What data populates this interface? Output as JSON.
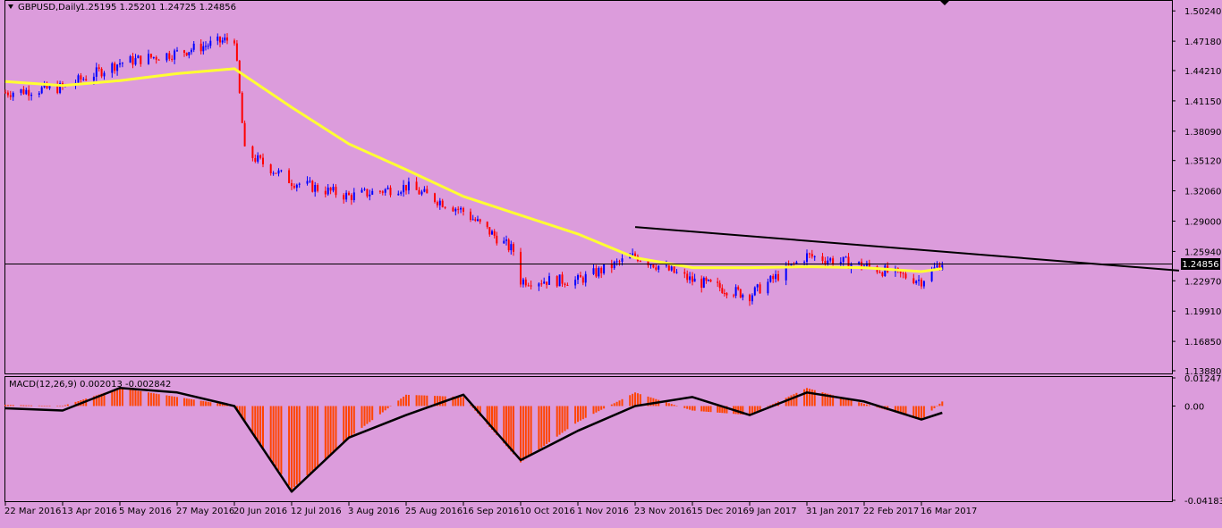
{
  "window": {
    "symbol_label": "GBPUSD,Daily",
    "ohlc": "1.25195 1.25201 1.24725 1.24856",
    "menu_arrow": "triangle-down-icon",
    "corner_marker": "triangle-down-icon"
  },
  "colors": {
    "background": "#dc9cdc",
    "bull": "#0000ff",
    "bear": "#ff0000",
    "ma": "#ffff33",
    "macd_hist": "#ff4500",
    "signal": "#000000",
    "trendline": "#000000",
    "price_tag_bg": "#000000"
  },
  "price_axis": {
    "ticks": [
      "1.50240",
      "1.47180",
      "1.44210",
      "1.41150",
      "1.38090",
      "1.35120",
      "1.32060",
      "1.29000",
      "1.25940",
      "1.22970",
      "1.19910",
      "1.16850",
      "1.13880"
    ],
    "current_price": "1.24856"
  },
  "macd": {
    "label": "MACD(12,26,9) 0.002013 -0.002842",
    "ticks": [
      "0.01247",
      "0.00",
      "-0.04183"
    ]
  },
  "date_axis": {
    "labels": [
      "22 Mar 2016",
      "13 Apr 2016",
      "5 May 2016",
      "27 May 2016",
      "20 Jun 2016",
      "12 Jul 2016",
      "3 Aug 2016",
      "25 Aug 2016",
      "16 Sep 2016",
      "10 Oct 2016",
      "1 Nov 2016",
      "23 Nov 2016",
      "15 Dec 2016",
      "9 Jan 2017",
      "31 Jan 2017",
      "22 Feb 2017",
      "16 Mar 2017"
    ]
  },
  "chart_data": [
    {
      "type": "candlestick",
      "symbol": "GBPUSD",
      "timeframe": "Daily",
      "ylim": [
        1.1388,
        1.508
      ],
      "moving_average": {
        "x": [
          "22 Mar 2016",
          "13 Apr 2016",
          "5 May 2016",
          "27 May 2016",
          "20 Jun 2016",
          "12 Jul 2016",
          "3 Aug 2016",
          "25 Aug 2016",
          "16 Sep 2016",
          "10 Oct 2016",
          "1 Nov 2016",
          "23 Nov 2016",
          "15 Dec 2016",
          "9 Jan 2017",
          "31 Jan 2017",
          "22 Feb 2017",
          "16 Mar 2017",
          "24 Mar 2017"
        ],
        "y": [
          1.431,
          1.427,
          1.432,
          1.439,
          1.444,
          1.405,
          1.368,
          1.342,
          1.315,
          1.296,
          1.277,
          1.253,
          1.243,
          1.243,
          1.244,
          1.243,
          1.239,
          1.242
        ]
      },
      "trendline": {
        "x": [
          "23 Nov 2016",
          "24 Mar 2017"
        ],
        "y": [
          1.284,
          1.24
        ]
      },
      "close_approx": {
        "x": [
          "22 Mar 2016",
          "13 Apr 2016",
          "5 May 2016",
          "27 May 2016",
          "20 Jun 2016",
          "24 Jun 2016",
          "12 Jul 2016",
          "3 Aug 2016",
          "25 Aug 2016",
          "16 Sep 2016",
          "7 Oct 2016",
          "10 Oct 2016",
          "1 Nov 2016",
          "23 Nov 2016",
          "15 Dec 2016",
          "9 Jan 2017",
          "31 Jan 2017",
          "22 Feb 2017",
          "16 Mar 2017",
          "24 Mar 2017"
        ],
        "y": [
          1.42,
          1.425,
          1.45,
          1.46,
          1.475,
          1.36,
          1.33,
          1.315,
          1.325,
          1.3,
          1.26,
          1.23,
          1.23,
          1.255,
          1.23,
          1.215,
          1.255,
          1.245,
          1.23,
          1.2486
        ]
      }
    },
    {
      "type": "bar",
      "name": "MACD(12,26,9)",
      "ylim": [
        -0.04183,
        0.01247
      ],
      "x": [
        "22 Mar 2016",
        "13 Apr 2016",
        "5 May 2016",
        "27 May 2016",
        "20 Jun 2016",
        "12 Jul 2016",
        "3 Aug 2016",
        "25 Aug 2016",
        "16 Sep 2016",
        "10 Oct 2016",
        "1 Nov 2016",
        "23 Nov 2016",
        "15 Dec 2016",
        "9 Jan 2017",
        "31 Jan 2017",
        "22 Feb 2017",
        "16 Mar 2017",
        "24 Mar 2017"
      ],
      "histogram": [
        0.0005,
        0.0,
        0.008,
        0.004,
        0.0,
        -0.037,
        -0.014,
        0.005,
        0.004,
        -0.025,
        -0.007,
        0.006,
        -0.002,
        -0.004,
        0.008,
        0.001,
        -0.006,
        0.002
      ],
      "signal": [
        -0.001,
        -0.002,
        0.008,
        0.006,
        0.0,
        -0.038,
        -0.014,
        -0.004,
        0.005,
        -0.024,
        -0.011,
        0.0,
        0.004,
        -0.004,
        0.006,
        0.002,
        -0.006,
        -0.003
      ]
    }
  ]
}
